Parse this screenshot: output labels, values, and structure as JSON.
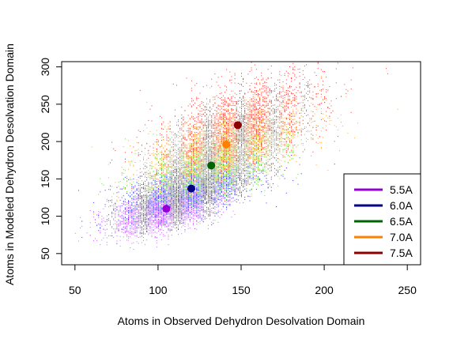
{
  "chart_data": {
    "type": "scatter",
    "title": "",
    "xlabel": "Atoms in Observed Dehydron Desolvation Domain",
    "ylabel": "Atoms in Modeled Dehydron Desolvation Domain",
    "xlim": [
      42,
      258
    ],
    "ylim": [
      35,
      307
    ],
    "x_ticks": [
      50,
      100,
      150,
      200,
      250
    ],
    "y_ticks": [
      50,
      100,
      150,
      200,
      250,
      300
    ],
    "grid": false,
    "legend_position": "bottom-right",
    "series": [
      {
        "name": "5.5A",
        "color": "#9400D3",
        "mean_x": 105,
        "mean_y": 110,
        "spread_x": 17,
        "spread_y": 17,
        "approx_points": 3000
      },
      {
        "name": "6.0A",
        "color": "#000080",
        "mean_x": 120,
        "mean_y": 137,
        "spread_x": 20,
        "spread_y": 21,
        "approx_points": 2600
      },
      {
        "name": "6.5A",
        "color": "#006400",
        "mean_x": 132,
        "mean_y": 168,
        "spread_x": 22,
        "spread_y": 26,
        "approx_points": 2600
      },
      {
        "name": "7.0A",
        "color": "#FF7F00",
        "mean_x": 141,
        "mean_y": 196,
        "spread_x": 24,
        "spread_y": 30,
        "approx_points": 2500
      },
      {
        "name": "7.5A",
        "color": "#8B0000",
        "mean_x": 148,
        "mean_y": 222,
        "spread_x": 25,
        "spread_y": 34,
        "approx_points": 2400
      }
    ],
    "scatter_point_colors": {
      "5.5A": "#CC66FF",
      "6.0A": "#3333FF",
      "6.5A": "#66DD33",
      "7.0A": "#FFAA33",
      "7.5A": "#FF3333"
    }
  }
}
